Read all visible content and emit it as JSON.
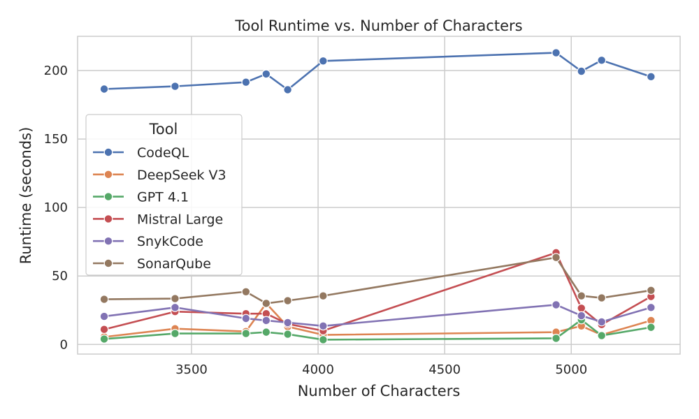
{
  "chart_data": {
    "type": "line",
    "title": "Tool Runtime vs. Number of Characters",
    "xlabel": "Number of Characters",
    "ylabel": "Runtime (seconds)",
    "xlim": [
      3050,
      5430
    ],
    "ylim": [
      -7,
      225
    ],
    "xticks": [
      3500,
      4000,
      4500,
      5000
    ],
    "yticks": [
      0,
      50,
      100,
      150,
      200
    ],
    "grid": true,
    "legend": {
      "title": "Tool",
      "placement": "center-left"
    },
    "x": [
      3155,
      3435,
      3715,
      3795,
      3880,
      4020,
      4940,
      5040,
      5120,
      5315
    ],
    "series": [
      {
        "name": "CodeQL",
        "color": "#4c72b0",
        "values": [
          186.5,
          188.5,
          191.5,
          197.5,
          186.0,
          207.0,
          213.0,
          199.5,
          207.5,
          195.5
        ]
      },
      {
        "name": "DeepSeek V3",
        "color": "#dd8452",
        "values": [
          5.5,
          11.5,
          9.5,
          30.0,
          13.0,
          7.0,
          9.0,
          13.5,
          7.0,
          17.5
        ]
      },
      {
        "name": "GPT 4.1",
        "color": "#55a868",
        "values": [
          4.0,
          8.0,
          8.0,
          9.0,
          7.5,
          3.5,
          4.5,
          18.0,
          6.5,
          12.5
        ]
      },
      {
        "name": "Mistral Large",
        "color": "#c44e52",
        "values": [
          11.0,
          24.0,
          22.5,
          22.5,
          15.0,
          10.0,
          67.0,
          26.5,
          14.5,
          35.0
        ]
      },
      {
        "name": "SnykCode",
        "color": "#8172b3",
        "values": [
          20.5,
          27.0,
          19.0,
          17.5,
          16.0,
          13.5,
          29.0,
          21.0,
          16.5,
          27.0
        ]
      },
      {
        "name": "SonarQube",
        "color": "#937860",
        "values": [
          33.0,
          33.5,
          38.5,
          30.0,
          32.0,
          35.5,
          63.5,
          35.5,
          34.0,
          39.5
        ]
      }
    ]
  }
}
